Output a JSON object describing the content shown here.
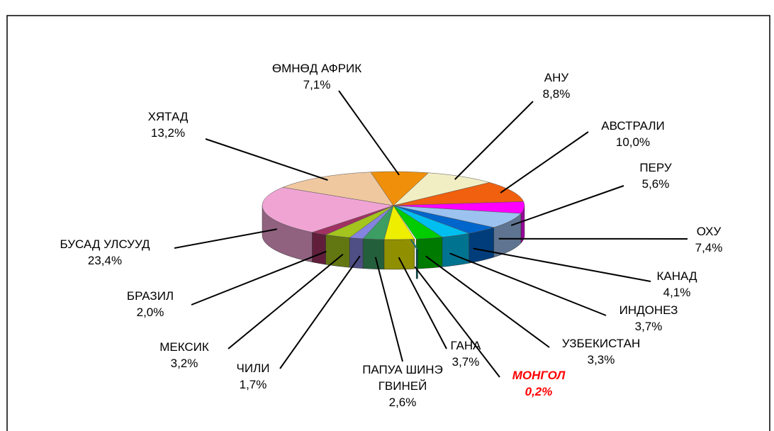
{
  "chart_data": {
    "type": "pie",
    "categories": [
      "ӨМНӨД АФРИК",
      "АНУ",
      "АВСТРАЛИ",
      "ПЕРУ",
      "ОХУ",
      "КАНАД",
      "ИНДОНЕЗ",
      "УЗБЕКИСТАН",
      "МОНГОЛ",
      "ГАНА",
      "ПАПУА ШИНЭ ГВИНЕЙ",
      "ЧИЛИ",
      "МЕКСИК",
      "БРАЗИЛ",
      "БУСАД УЛСУУД",
      "ХЯТАД"
    ],
    "values": [
      7.1,
      8.8,
      10.0,
      5.6,
      7.4,
      4.1,
      3.7,
      3.3,
      0.2,
      3.7,
      2.6,
      1.7,
      3.2,
      2.0,
      23.4,
      13.2
    ],
    "value_labels": [
      "7,1%",
      "8,8%",
      "10,0%",
      "5,6%",
      "7,4%",
      "4,1%",
      "3,7%",
      "3,3%",
      "0,2%",
      "3,7%",
      "2,6%",
      "1,7%",
      "3,2%",
      "2,0%",
      "23,4%",
      "13,2%"
    ],
    "colors": [
      "#f0900a",
      "#f2eec4",
      "#f0600e",
      "#ff00ff",
      "#9cc2f0",
      "#0066cc",
      "#00bff0",
      "#00cc00",
      "#008080",
      "#eeee00",
      "#3c9e62",
      "#8484e0",
      "#a4c41e",
      "#a03262",
      "#f0a4d4",
      "#f0c8a0"
    ],
    "highlight": 8,
    "highlight_color": "#ff0000"
  }
}
